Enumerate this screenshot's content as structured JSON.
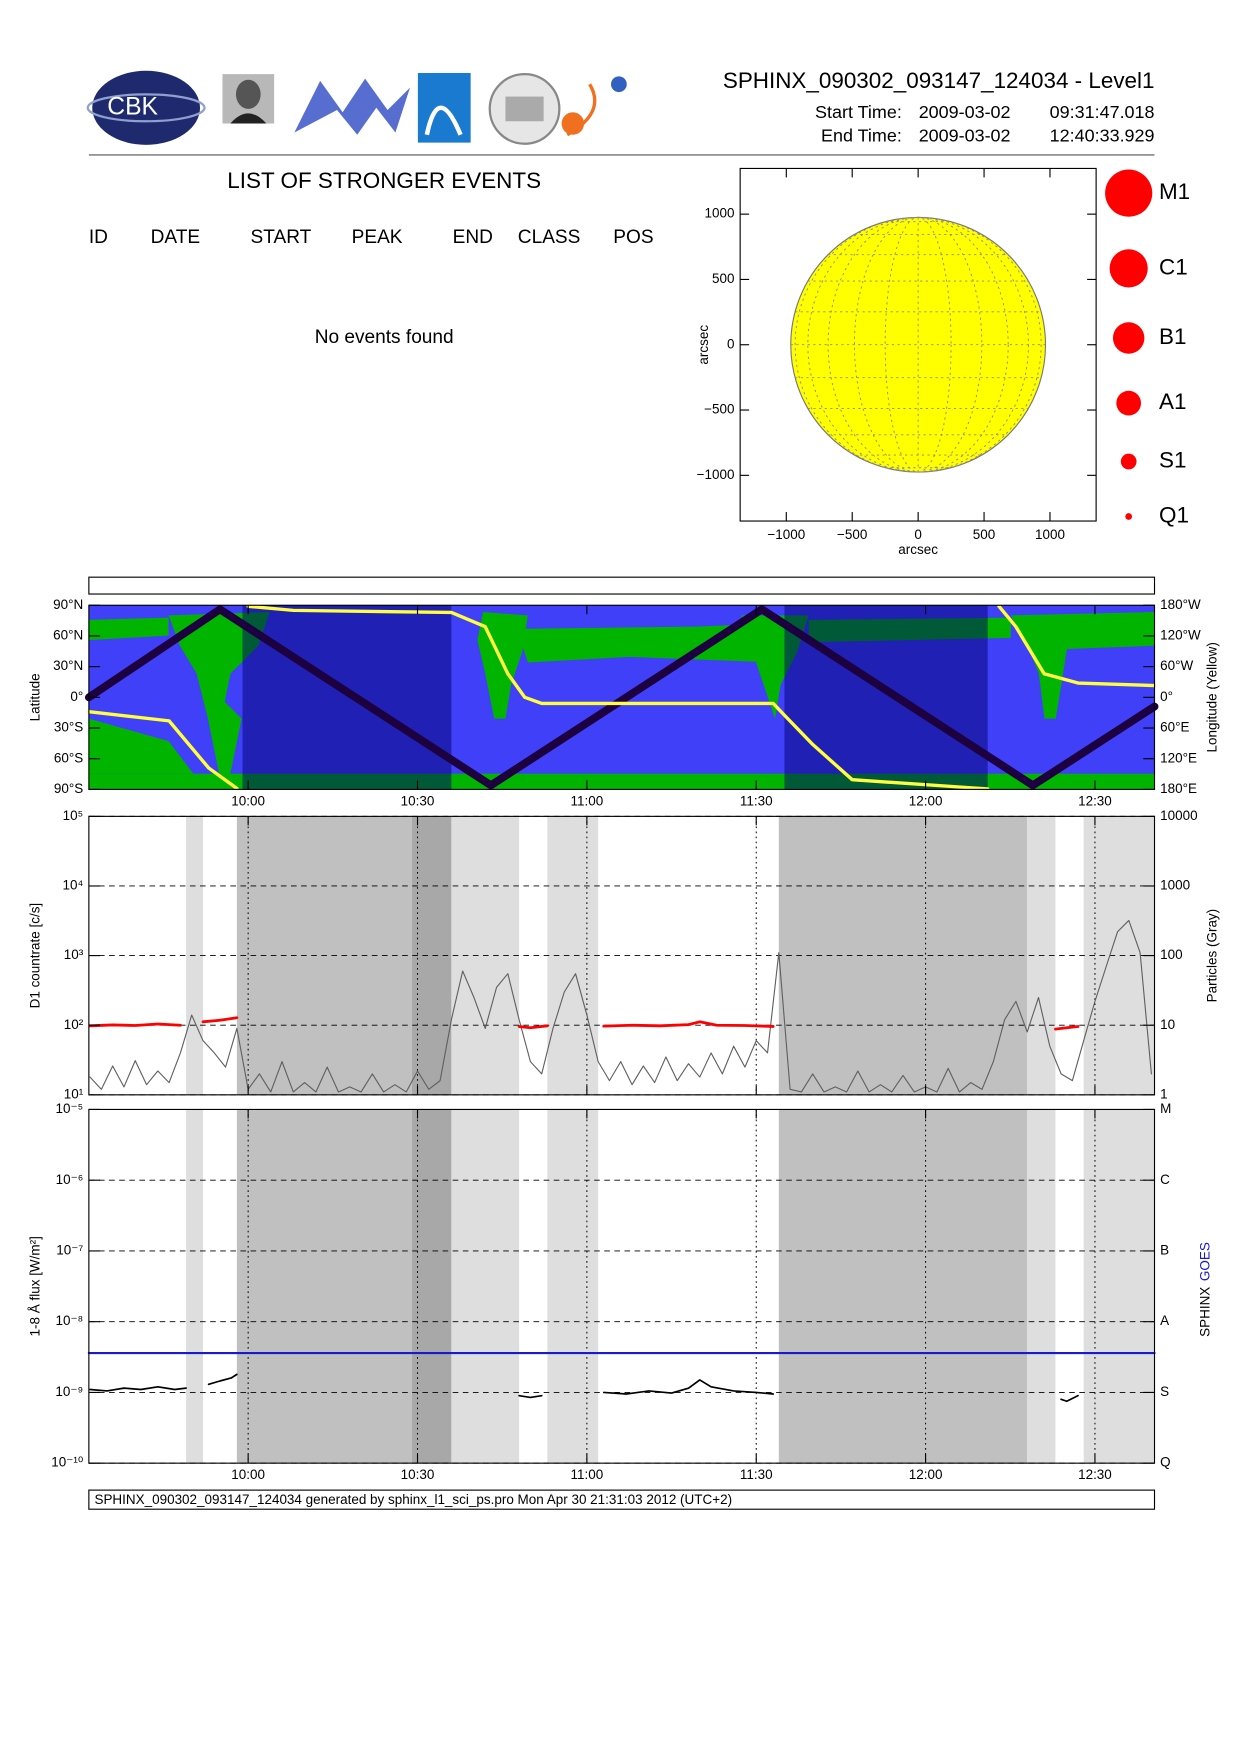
{
  "header": {
    "title": "SPHINX_090302_093147_124034 - Level1",
    "logo_text": "CBK",
    "start_label": "Start Time:",
    "start_date": "2009-03-02",
    "start_time": "09:31:47.018",
    "end_label": "End Time:",
    "end_date": "2009-03-02",
    "end_time": "12:40:33.929"
  },
  "events": {
    "title": "LIST OF STRONGER EVENTS",
    "columns": [
      "ID",
      "DATE",
      "START",
      "PEAK",
      "END",
      "CLASS",
      "POS"
    ],
    "message": "No events found"
  },
  "chart_data": [
    {
      "type": "disk",
      "xlabel": "arcsec",
      "ylabel": "arcsec",
      "xlim": [
        -1350,
        1350
      ],
      "ylim": [
        -1350,
        1350
      ],
      "xticks": [
        {
          "value": -1000,
          "label": "−1000"
        },
        {
          "value": -500,
          "label": "−500"
        },
        0,
        500,
        1000
      ],
      "yticks": [
        {
          "value": -1000,
          "label": "−1000"
        },
        {
          "value": -500,
          "label": "−500"
        },
        0,
        500,
        1000
      ],
      "disk_radius": 966,
      "disk_color": "#ffff00",
      "grid": true,
      "legend": [
        "M1",
        "C1",
        "B1",
        "A1",
        "S1",
        "Q1"
      ],
      "legend_color": "#ff0000"
    },
    {
      "type": "orbit",
      "ylabel": "Latitude",
      "y2label": "Longitude (Yellow)",
      "xlim": [
        "09:31:47",
        "12:40:33"
      ],
      "xticks": [
        "10:00",
        "10:30",
        "11:00",
        "11:30",
        "12:00",
        "12:30"
      ],
      "ylim": [
        -90,
        90
      ],
      "yticks": [
        {
          "value": -90,
          "label": "90°S"
        },
        {
          "value": -60,
          "label": "60°S"
        },
        {
          "value": -30,
          "label": "30°S"
        },
        {
          "value": 0,
          "label": "0°"
        },
        {
          "value": 30,
          "label": "30°N"
        },
        {
          "value": 60,
          "label": "60°N"
        },
        {
          "value": 90,
          "label": "90°N"
        }
      ],
      "y2lim": [
        180,
        -180
      ],
      "y2ticks": [
        {
          "value": -180,
          "label": "180°W"
        },
        {
          "value": -120,
          "label": "120°W"
        },
        {
          "value": -60,
          "label": "60°W"
        },
        {
          "value": 0,
          "label": "0°"
        },
        {
          "value": 60,
          "label": "60°E"
        },
        {
          "value": 120,
          "label": "120°E"
        },
        {
          "value": 180,
          "label": "180°E"
        }
      ],
      "grid": false,
      "shading": [
        {
          "start": "09:59",
          "end": "10:36",
          "kind": "dark"
        },
        {
          "start": "11:35",
          "end": "12:11",
          "kind": "dark"
        }
      ],
      "shading_colors": {
        "dark": "#000070"
      },
      "shading_opacity": 0.5,
      "series": [
        {
          "color": "#1c0040",
          "width": 7,
          "x": [
            "09:31:47",
            "09:55",
            "10:43",
            "11:31",
            "12:19",
            "12:40:33"
          ],
          "values": [
            0,
            86,
            -86,
            86,
            -86,
            -9
          ]
        },
        {
          "color": "#ffff40",
          "width": 3,
          "axis": "y2",
          "x": [
            "09:31:47",
            "09:46",
            "09:53",
            "09:58",
            "09:59",
            "10:00",
            "10:08",
            "10:36",
            "10:42",
            "10:46",
            "10:49",
            "10:52",
            "11:33",
            "11:35",
            "11:40",
            "11:47",
            "12:07",
            "12:11",
            "12:12",
            "12:13",
            "12:16",
            "12:21",
            "12:27",
            "12:40:33"
          ],
          "values": [
            28,
            46,
            138,
            178,
            null,
            -178,
            -170,
            -166,
            -138,
            -46,
            0,
            12,
            12,
            35,
            92,
            161,
            176,
            179,
            null,
            -178,
            -138,
            -46,
            -28,
            -23
          ]
        }
      ]
    },
    {
      "type": "line",
      "ylabel": "D1 countrate [c/s]",
      "y2label": "Particles (Gray)",
      "log": true,
      "grid": true,
      "xlim": [
        "09:31:47",
        "12:40:33"
      ],
      "ylim": [
        10,
        100000
      ],
      "yticks": [
        {
          "value": 10,
          "label": "10¹"
        },
        {
          "value": 100,
          "label": "10²"
        },
        {
          "value": 1000,
          "label": "10³"
        },
        {
          "value": 10000,
          "label": "10⁴"
        },
        {
          "value": 100000,
          "label": "10⁵"
        }
      ],
      "y2lim": [
        1,
        10000
      ],
      "y2ticks": [
        1,
        10,
        100,
        1000,
        10000
      ],
      "shading": [
        {
          "start": "09:49",
          "end": "09:52",
          "kind": "light"
        },
        {
          "start": "09:58",
          "end": "10:29",
          "kind": "dark"
        },
        {
          "start": "10:29",
          "end": "10:36",
          "kind": "darker"
        },
        {
          "start": "10:36",
          "end": "10:48",
          "kind": "light"
        },
        {
          "start": "10:53",
          "end": "11:02",
          "kind": "light"
        },
        {
          "start": "11:34",
          "end": "12:18",
          "kind": "dark"
        },
        {
          "start": "12:18",
          "end": "12:23",
          "kind": "light"
        },
        {
          "start": "12:28",
          "end": "12:40:33",
          "kind": "light"
        }
      ],
      "shading_colors": {
        "light": "#dedede",
        "dark": "#c0c0c0",
        "darker": "#a8a8a8"
      },
      "series": [
        {
          "color": "#606060",
          "width": 1,
          "axis": "y2",
          "x": [
            "09:32",
            "09:34",
            "09:36",
            "09:38",
            "09:40",
            "09:42",
            "09:44",
            "09:46",
            "09:48",
            "09:50",
            "09:52",
            "09:54",
            "09:56",
            "09:58",
            "10:00",
            "10:02",
            "10:04",
            "10:06",
            "10:08",
            "10:10",
            "10:12",
            "10:14",
            "10:16",
            "10:18",
            "10:20",
            "10:22",
            "10:24",
            "10:26",
            "10:28",
            "10:30",
            "10:32",
            "10:34",
            "10:36",
            "10:38",
            "10:40",
            "10:42",
            "10:44",
            "10:46",
            "10:48",
            "10:50",
            "10:52",
            "10:54",
            "10:56",
            "10:58",
            "11:00",
            "11:02",
            "11:04",
            "11:06",
            "11:08",
            "11:10",
            "11:12",
            "11:14",
            "11:16",
            "11:18",
            "11:20",
            "11:22",
            "11:24",
            "11:26",
            "11:28",
            "11:30",
            "11:32",
            "11:34",
            "11:36",
            "11:38",
            "11:40",
            "11:42",
            "11:44",
            "11:46",
            "11:48",
            "11:50",
            "11:52",
            "11:54",
            "11:56",
            "11:58",
            "12:00",
            "12:02",
            "12:04",
            "12:06",
            "12:08",
            "12:10",
            "12:12",
            "12:14",
            "12:16",
            "12:18",
            "12:20",
            "12:22",
            "12:24",
            "12:26",
            "12:28",
            "12:30",
            "12:32",
            "12:34",
            "12:36",
            "12:38",
            "12:40"
          ],
          "values": [
            1.8,
            1.2,
            2.6,
            1.3,
            3.1,
            1.4,
            2.2,
            1.5,
            4,
            14,
            6,
            4,
            2.5,
            9,
            1.2,
            2,
            1.1,
            3,
            1.1,
            1.5,
            1.1,
            2.5,
            1.1,
            1.3,
            1.1,
            2,
            1.1,
            1.4,
            1.1,
            2.2,
            1.2,
            1.6,
            12,
            60,
            25,
            9,
            35,
            55,
            12,
            3,
            2,
            9,
            30,
            55,
            14,
            3,
            1.6,
            3,
            1.4,
            2.6,
            1.5,
            3.5,
            1.6,
            2.8,
            1.8,
            4,
            2,
            5,
            2.5,
            6,
            4,
            110,
            1.2,
            1.1,
            2,
            1.1,
            1.3,
            1.1,
            2.2,
            1.1,
            1.4,
            1.1,
            1.9,
            1.1,
            1.3,
            1.1,
            2.4,
            1.1,
            1.5,
            1.2,
            3,
            12,
            22,
            8,
            25,
            5,
            2,
            1.6,
            6,
            22,
            70,
            220,
            320,
            110,
            2
          ]
        },
        {
          "color": "#ff0000",
          "width": 2.5,
          "x": [
            "09:32",
            "09:36",
            "09:40",
            "09:44",
            "09:48",
            "09:49",
            "09:52",
            "09:55",
            "09:58",
            "10:00",
            "10:48",
            "10:50",
            "10:53",
            "10:54",
            "11:03",
            "11:08",
            "11:13",
            "11:18",
            "11:20",
            "11:23",
            "11:28",
            "11:33",
            "11:34",
            "12:23",
            "12:25",
            "12:27"
          ],
          "values": [
            98,
            101,
            99,
            104,
            100,
            null,
            112,
            118,
            128,
            null,
            96,
            92,
            98,
            null,
            97,
            100,
            98,
            102,
            112,
            100,
            99,
            96,
            null,
            88,
            92,
            96
          ]
        }
      ]
    },
    {
      "type": "line",
      "ylabel": "1-8 Å flux [W/m²]",
      "log": true,
      "grid": true,
      "xlim": [
        "09:31:47",
        "12:40:33"
      ],
      "xticks": [
        "10:00",
        "10:30",
        "11:00",
        "11:30",
        "12:00",
        "12:30"
      ],
      "ylim": [
        1e-10,
        1e-05
      ],
      "yticks": [
        {
          "value": 1e-10,
          "label": "10⁻¹⁰"
        },
        {
          "value": 1e-09,
          "label": "10⁻⁹"
        },
        {
          "value": 1e-08,
          "label": "10⁻⁸"
        },
        {
          "value": 1e-07,
          "label": "10⁻⁷"
        },
        {
          "value": 1e-06,
          "label": "10⁻⁶"
        },
        {
          "value": 1e-05,
          "label": "10⁻⁵"
        }
      ],
      "y2lim": [
        1e-10,
        1e-05
      ],
      "y2ticks": [
        {
          "value": 1e-10,
          "label": "Q"
        },
        {
          "value": 1e-09,
          "label": "S"
        },
        {
          "value": 1e-08,
          "label": "A"
        },
        {
          "value": 1e-07,
          "label": "B"
        },
        {
          "value": 1e-06,
          "label": "C"
        },
        {
          "value": 1e-05,
          "label": "M"
        }
      ],
      "shading": [
        {
          "start": "09:49",
          "end": "09:52",
          "kind": "light"
        },
        {
          "start": "09:58",
          "end": "10:29",
          "kind": "dark"
        },
        {
          "start": "10:29",
          "end": "10:36",
          "kind": "darker"
        },
        {
          "start": "10:36",
          "end": "10:48",
          "kind": "light"
        },
        {
          "start": "10:53",
          "end": "11:02",
          "kind": "light"
        },
        {
          "start": "11:34",
          "end": "12:18",
          "kind": "dark"
        },
        {
          "start": "12:18",
          "end": "12:23",
          "kind": "light"
        },
        {
          "start": "12:28",
          "end": "12:40:33",
          "kind": "light"
        }
      ],
      "shading_colors": {
        "light": "#dedede",
        "dark": "#c0c0c0",
        "darker": "#a8a8a8"
      },
      "series": [
        {
          "name": "SPHINX",
          "color": "#000000",
          "width": 1.5,
          "x": [
            "09:32",
            "09:35",
            "09:38",
            "09:41",
            "09:44",
            "09:47",
            "09:49",
            "09:50",
            "09:53",
            "09:55",
            "09:57",
            "09:58",
            "09:59",
            "10:48",
            "10:50",
            "10:52",
            "10:53",
            "11:03",
            "11:07",
            "11:11",
            "11:15",
            "11:18",
            "11:20",
            "11:22",
            "11:26",
            "11:30",
            "11:33",
            "11:34",
            "12:24",
            "12:25",
            "12:27"
          ],
          "values": [
            1.1e-09,
            1.05e-09,
            1.15e-09,
            1.1e-09,
            1.2e-09,
            1.1e-09,
            1.15e-09,
            null,
            1.3e-09,
            1.45e-09,
            1.6e-09,
            1.8e-09,
            null,
            9e-10,
            8.5e-10,
            9e-10,
            null,
            1e-09,
            9.5e-10,
            1.05e-09,
            9.8e-10,
            1.15e-09,
            1.5e-09,
            1.2e-09,
            1.05e-09,
            1e-09,
            9.5e-10,
            null,
            8e-10,
            7.5e-10,
            9e-10
          ]
        },
        {
          "name": "GOES",
          "color": "#1a1acc",
          "width": 2,
          "x": [
            "09:31:47",
            "12:40:33"
          ],
          "values": [
            3.6e-09,
            3.6e-09
          ]
        }
      ]
    }
  ],
  "footer": "SPHINX_090302_093147_124034 generated by sphinx_l1_sci_ps.pro Mon Apr 30 21:31:03 2012 (UTC+2)"
}
